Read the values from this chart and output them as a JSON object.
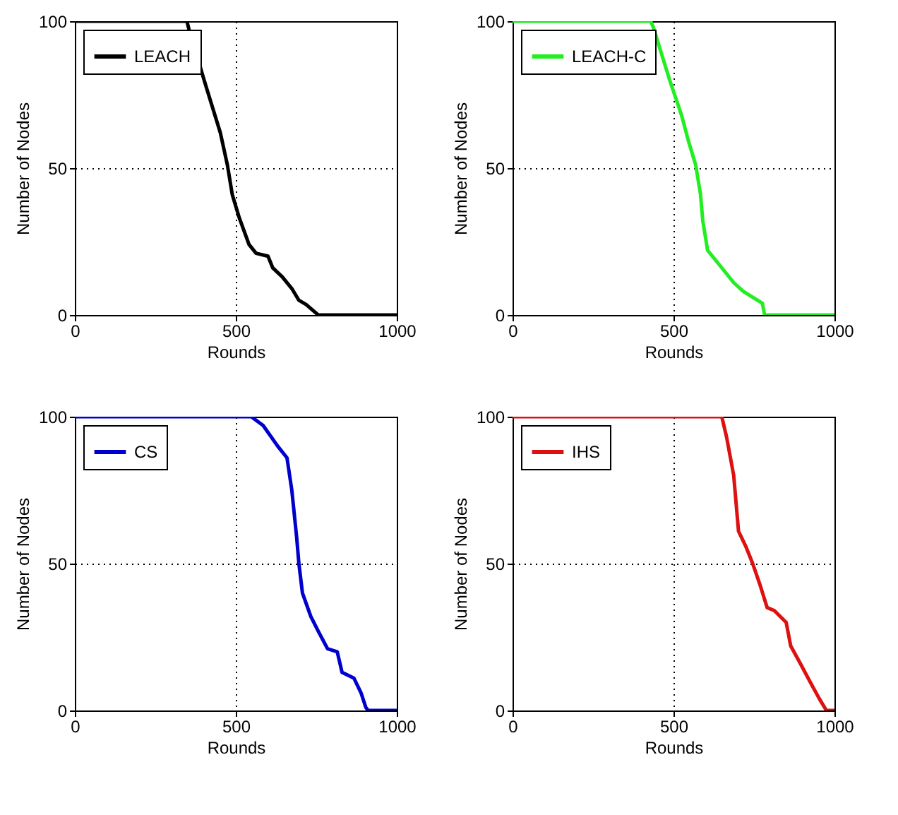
{
  "chart_data": [
    {
      "type": "line",
      "xlabel": "Rounds",
      "ylabel": "Number of Nodes",
      "xlim": [
        0,
        1000
      ],
      "ylim": [
        0,
        100
      ],
      "xticks": [
        0,
        500,
        1000
      ],
      "yticks": [
        0,
        50,
        100
      ],
      "grid": true,
      "legend": "top left",
      "series": [
        {
          "name": "LEACH",
          "color": "#000000",
          "x": [
            0,
            348,
            355,
            407,
            452,
            474,
            489,
            511,
            541,
            563,
            600,
            615,
            644,
            674,
            696,
            719,
            756,
            1000
          ],
          "values": [
            100,
            100,
            97,
            78,
            62,
            51,
            41,
            33,
            24,
            21,
            20,
            16,
            13,
            9,
            5,
            3.5,
            0,
            0
          ]
        }
      ]
    },
    {
      "type": "line",
      "xlabel": "Rounds",
      "ylabel": "Number of Nodes",
      "xlim": [
        0,
        1000
      ],
      "ylim": [
        0,
        100
      ],
      "xticks": [
        0,
        500,
        1000
      ],
      "yticks": [
        0,
        50,
        100
      ],
      "grid": true,
      "legend": "top left",
      "series": [
        {
          "name": "LEACH-C",
          "color": "#22ee22",
          "x": [
            0,
            429,
            437,
            488,
            525,
            547,
            569,
            584,
            591,
            606,
            643,
            687,
            717,
            776,
            783,
            1000
          ],
          "values": [
            100,
            100,
            98,
            80,
            68,
            59,
            51,
            41,
            32,
            22,
            17,
            11,
            8,
            4,
            0,
            0
          ]
        }
      ]
    },
    {
      "type": "line",
      "xlabel": "Rounds",
      "ylabel": "Number of Nodes",
      "xlim": [
        0,
        1000
      ],
      "ylim": [
        0,
        100
      ],
      "xticks": [
        0,
        500,
        1000
      ],
      "yticks": [
        0,
        50,
        100
      ],
      "grid": true,
      "legend": "top left",
      "series": [
        {
          "name": "CS",
          "color": "#0000cc",
          "x": [
            0,
            548,
            585,
            630,
            659,
            674,
            689,
            696,
            707,
            733,
            756,
            785,
            815,
            830,
            867,
            889,
            904,
            911,
            1000
          ],
          "values": [
            100,
            100,
            97,
            90,
            86,
            75,
            59,
            50,
            40,
            32,
            27,
            21,
            20,
            13,
            11,
            6,
            1,
            0,
            0
          ]
        }
      ]
    },
    {
      "type": "line",
      "xlabel": "Rounds",
      "ylabel": "Number of Nodes",
      "xlim": [
        0,
        1000
      ],
      "ylim": [
        0,
        100
      ],
      "xticks": [
        0,
        500,
        1000
      ],
      "yticks": [
        0,
        50,
        100
      ],
      "grid": true,
      "legend": "top left",
      "series": [
        {
          "name": "IHS",
          "color": "#dd1111",
          "x": [
            0,
            650,
            665,
            687,
            702,
            724,
            746,
            768,
            791,
            813,
            850,
            864,
            894,
            923,
            953,
            975,
            1000
          ],
          "values": [
            100,
            100,
            93,
            80,
            61,
            56,
            50,
            43,
            35,
            34,
            30,
            22,
            16,
            10,
            4,
            0,
            0
          ]
        }
      ]
    }
  ]
}
